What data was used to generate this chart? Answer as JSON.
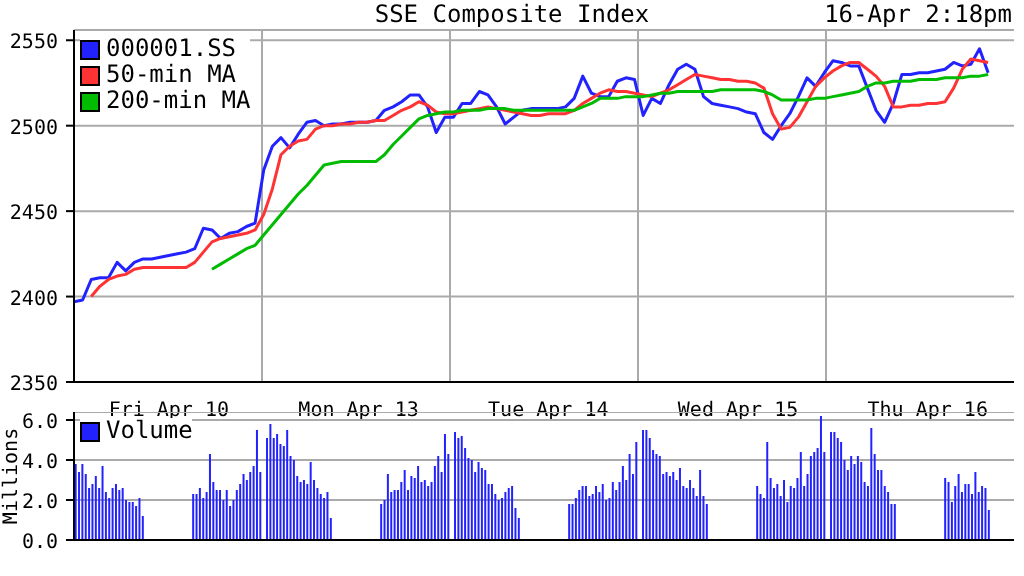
{
  "chart_data": [
    {
      "type": "line",
      "title": "SSE Composite Index",
      "subtitle": "16-Apr 2:18pm",
      "categories": [
        null,
        null,
        null,
        null,
        null,
        null,
        null,
        null,
        null,
        null,
        null,
        "Fri Apr 10",
        null,
        null,
        null,
        null,
        null,
        null,
        null,
        null,
        null,
        null,
        null,
        null,
        null,
        null,
        null,
        null,
        null,
        null,
        null,
        null,
        null,
        "Mon Apr 13",
        null,
        null,
        null,
        null,
        null,
        null,
        null,
        null,
        null,
        null,
        null,
        null,
        null,
        null,
        null,
        null,
        null,
        null,
        null,
        null,
        null,
        "Tue Apr 14",
        null,
        null,
        null,
        null,
        null,
        null,
        null,
        null,
        null,
        null,
        null,
        null,
        null,
        null,
        null,
        null,
        null,
        null,
        null,
        null,
        null,
        "Wed Apr 15",
        null,
        null,
        null,
        null,
        null,
        null,
        null,
        null,
        null,
        null,
        null,
        null,
        null,
        null,
        null,
        null,
        null,
        null,
        null,
        null,
        null,
        "Thu Apr 16",
        null,
        null,
        null,
        null,
        null,
        null,
        null,
        null,
        null,
        null
      ],
      "ylim": [
        2350,
        2556
      ],
      "yticks": [
        2350,
        2400,
        2450,
        2500,
        2550
      ],
      "grid": true,
      "legend": "top left",
      "series": [
        {
          "name": "000001.SS",
          "color": "#2222ff",
          "values": [
            2397,
            2398,
            2410,
            2411,
            2411,
            2420,
            2415,
            2420,
            2422,
            2422,
            2423,
            2424,
            2425,
            2426,
            2428,
            2440,
            2439,
            2434,
            2437,
            2438,
            2441,
            2443,
            2474,
            2488,
            2493,
            2487,
            2495,
            2502,
            2503,
            2500,
            2501,
            2501,
            2502,
            2502,
            2502,
            2503,
            2509,
            2511,
            2514,
            2518,
            2518,
            2511,
            2496,
            2505,
            2505,
            2513,
            2513,
            2520,
            2518,
            2511,
            2501,
            2505,
            2509,
            2510,
            2510,
            2510,
            2510,
            2511,
            2516,
            2529,
            2519,
            2517,
            2517,
            2526,
            2528,
            2527,
            2506,
            2516,
            2513,
            2524,
            2533,
            2536,
            2533,
            2517,
            2513,
            2512,
            2511,
            2510,
            2508,
            2507,
            2496,
            2492,
            2500,
            2507,
            2517,
            2528,
            2523,
            2531,
            2538,
            2537,
            2535,
            2535,
            2522,
            2509,
            2502,
            2513,
            2530,
            2530,
            2531,
            2531,
            2532,
            2533,
            2537,
            2535,
            2536,
            2545,
            2531,
            null,
            null,
            null
          ]
        },
        {
          "name": "50-min MA",
          "color": "#ff3333",
          "values": [
            null,
            null,
            2400,
            2406,
            2410,
            2412,
            2413,
            2416,
            2417,
            2417,
            2417,
            2417,
            2417,
            2417,
            2420,
            2426,
            2432,
            2434,
            2435,
            2436,
            2437,
            2439,
            2448,
            2463,
            2483,
            2488,
            2491,
            2492,
            2498,
            2500,
            2500,
            2501,
            2501,
            2502,
            2502,
            2503,
            2503,
            2506,
            2509,
            2511,
            2514,
            2512,
            2508,
            2507,
            2507,
            2508,
            2509,
            2510,
            2511,
            2510,
            2509,
            2508,
            2507,
            2506,
            2506,
            2507,
            2507,
            2507,
            2509,
            2513,
            2516,
            2519,
            2521,
            2520,
            2520,
            2519,
            2518,
            2517,
            2519,
            2521,
            2524,
            2527,
            2530,
            2529,
            2528,
            2527,
            2527,
            2526,
            2526,
            2525,
            2522,
            2507,
            2498,
            2499,
            2505,
            2514,
            2523,
            2528,
            2532,
            2535,
            2537,
            2537,
            2533,
            2529,
            2523,
            2511,
            2511,
            2512,
            2512,
            2513,
            2513,
            2514,
            2522,
            2533,
            2539,
            2538,
            2537,
            null,
            null,
            null
          ]
        },
        {
          "name": "200-min MA",
          "color": "#00bb00",
          "values": [
            null,
            null,
            null,
            null,
            null,
            null,
            null,
            null,
            null,
            null,
            null,
            null,
            null,
            null,
            null,
            null,
            2416,
            2419,
            2422,
            2425,
            2428,
            2430,
            2436,
            2442,
            2448,
            2454,
            2460,
            2465,
            2471,
            2477,
            2478,
            2479,
            2479,
            2479,
            2479,
            2479,
            2483,
            2489,
            2494,
            2499,
            2504,
            2506,
            2507,
            2508,
            2508,
            2509,
            2509,
            2509,
            2510,
            2510,
            2510,
            2509,
            2509,
            2509,
            2509,
            2509,
            2509,
            2509,
            2509,
            2511,
            2513,
            2516,
            2516,
            2516,
            2517,
            2517,
            2517,
            2518,
            2519,
            2519,
            2520,
            2520,
            2520,
            2520,
            2520,
            2521,
            2521,
            2521,
            2521,
            2521,
            2520,
            2518,
            2515,
            2515,
            2515,
            2515,
            2516,
            2516,
            2517,
            2518,
            2519,
            2520,
            2523,
            2525,
            2525,
            2526,
            2526,
            2526,
            2527,
            2527,
            2527,
            2528,
            2528,
            2528,
            2529,
            2529,
            2530,
            null,
            null,
            null
          ]
        }
      ]
    },
    {
      "type": "bar",
      "ylabel": "Millions",
      "categories": [
        null,
        null,
        null,
        null,
        null,
        null,
        null,
        null,
        null,
        null,
        null,
        null,
        null,
        null,
        null,
        null,
        null,
        null,
        null,
        null,
        null,
        null,
        null,
        null,
        null,
        null,
        null,
        null,
        null,
        null,
        null,
        null,
        null,
        null,
        null,
        null,
        null,
        null,
        null,
        null,
        null,
        null,
        null,
        null,
        null,
        null,
        null,
        null,
        null,
        null,
        null,
        null,
        null,
        null,
        null,
        null,
        null,
        null,
        null,
        null,
        null,
        null,
        null,
        null,
        null,
        null,
        null,
        null,
        null,
        null,
        null,
        null,
        null,
        null,
        null,
        null,
        null,
        null,
        null,
        null,
        null,
        null,
        null,
        null,
        null,
        null,
        null,
        null,
        null,
        null,
        null,
        null,
        null,
        null,
        null,
        null,
        null,
        null,
        null,
        null,
        null,
        null,
        null,
        null,
        null,
        null,
        null,
        null,
        null,
        null,
        null,
        null,
        null,
        null,
        null,
        null,
        null,
        null,
        null,
        null,
        null,
        null,
        null,
        null,
        null,
        null,
        null,
        null,
        null,
        null,
        null,
        null,
        null,
        null,
        null,
        null,
        null,
        null,
        null,
        null,
        null,
        null,
        null,
        null,
        null,
        null,
        null,
        null,
        null,
        null,
        null,
        null,
        null,
        null,
        null,
        null,
        null,
        null,
        null,
        null,
        null,
        null,
        null,
        null,
        null,
        null,
        null,
        null,
        null,
        null,
        null,
        null,
        null,
        null,
        null,
        null,
        null,
        null,
        null,
        null,
        null,
        null,
        null,
        null,
        null,
        null,
        null,
        null,
        null,
        null,
        null,
        null,
        null,
        null,
        null,
        null,
        null,
        null,
        null,
        null,
        null,
        null,
        null,
        null,
        null,
        null,
        null,
        null,
        null,
        null,
        null,
        null,
        null,
        null,
        null,
        null,
        null,
        null,
        null,
        null,
        null,
        null,
        null,
        null,
        null,
        null,
        null,
        null,
        null,
        null,
        null,
        null,
        null,
        null,
        null,
        null,
        null,
        null,
        null,
        null,
        null,
        null,
        null,
        null,
        null,
        null,
        null,
        null,
        null,
        null,
        null,
        null,
        null,
        null,
        null,
        null,
        null,
        null,
        null,
        null,
        null,
        null,
        null,
        null,
        null,
        null,
        null,
        null,
        null,
        null,
        null,
        null,
        null,
        null,
        null,
        null,
        null,
        null,
        null,
        null
      ],
      "ylim": [
        0,
        6.4
      ],
      "yticks": [
        {
          "value": 0,
          "label": "0.0"
        },
        {
          "value": 2,
          "label": "2.0"
        },
        {
          "value": 4,
          "label": "4.0"
        },
        {
          "value": 6,
          "label": "6.0"
        }
      ],
      "grid": "y",
      "legend": "top left",
      "tick_labels": "y",
      "series": [
        {
          "name": "Volume",
          "color": "#2222ff",
          "values": [
            3.8,
            3.4,
            3.8,
            3.3,
            2.6,
            2.8,
            3.2,
            2.6,
            3.7,
            2.4,
            2.1,
            2.6,
            2.8,
            2.5,
            2.6,
            2.0,
            1.9,
            1.9,
            1.7,
            2.1,
            1.2,
            null,
            null,
            null,
            null,
            null,
            null,
            null,
            null,
            null,
            null,
            null,
            null,
            null,
            null,
            2.3,
            2.3,
            2.6,
            2.1,
            2.4,
            4.3,
            2.9,
            2.5,
            2.5,
            2.0,
            2.5,
            1.7,
            2.0,
            2.5,
            2.8,
            3.3,
            3.0,
            3.4,
            3.7,
            5.5,
            3.4,
            null,
            5.1,
            5.8,
            5.1,
            5.3,
            4.8,
            4.7,
            5.5,
            4.2,
            4.0,
            3.2,
            2.9,
            3.0,
            2.8,
            3.9,
            3.0,
            2.6,
            2.3,
            2.1,
            2.4,
            1.1,
            null,
            null,
            null,
            null,
            null,
            null,
            null,
            null,
            null,
            null,
            null,
            null,
            null,
            null,
            1.8,
            2.0,
            3.3,
            2.4,
            2.5,
            2.5,
            2.9,
            3.5,
            2.5,
            3.2,
            3.1,
            3.7,
            2.9,
            3.0,
            2.7,
            2.9,
            3.7,
            4.2,
            3.4,
            5.3,
            4.3,
            null,
            5.4,
            5.1,
            5.2,
            4.6,
            4.1,
            4.0,
            3.4,
            3.9,
            3.6,
            3.5,
            2.8,
            2.8,
            2.3,
            2.0,
            2.1,
            2.4,
            2.6,
            2.7,
            1.6,
            1.1,
            null,
            null,
            null,
            null,
            null,
            null,
            null,
            null,
            null,
            null,
            null,
            null,
            null,
            null,
            1.8,
            1.8,
            2.1,
            2.5,
            2.7,
            2.7,
            2.2,
            2.3,
            2.7,
            2.4,
            2.8,
            2.0,
            2.1,
            2.9,
            2.5,
            2.9,
            3.7,
            3.0,
            4.3,
            3.3,
            4.9,
            null,
            5.5,
            5.5,
            5.1,
            4.5,
            4.3,
            4.2,
            3.3,
            3.4,
            3.2,
            3.4,
            3.0,
            3.6,
            2.7,
            2.6,
            3.0,
            2.6,
            2.2,
            3.5,
            2.2,
            1.8,
            null,
            null,
            null,
            null,
            null,
            null,
            null,
            null,
            null,
            null,
            null,
            null,
            null,
            null,
            2.7,
            2.3,
            2.1,
            4.9,
            3.1,
            2.6,
            2.8,
            2.2,
            3.0,
            1.9,
            2.7,
            2.6,
            3.1,
            4.4,
            2.7,
            3.3,
            4.2,
            4.4,
            4.6,
            6.2,
            4.4,
            null,
            5.4,
            5.4,
            5.1,
            4.9,
            4.0,
            3.5,
            4.2,
            3.8,
            4.2,
            3.9,
            2.9,
            2.7,
            5.6,
            4.3,
            3.5,
            3.5,
            2.7,
            2.4,
            1.8,
            1.8,
            null,
            null,
            null,
            null,
            null,
            null,
            null,
            null,
            null,
            null,
            null,
            null,
            null,
            null,
            3.1,
            2.9,
            1.9,
            2.7,
            3.3,
            2.4,
            2.8,
            2.8,
            2.3,
            3.4,
            2.4,
            2.7,
            2.6,
            1.5,
            null,
            null,
            null,
            null,
            null,
            null,
            null
          ]
        }
      ]
    }
  ]
}
